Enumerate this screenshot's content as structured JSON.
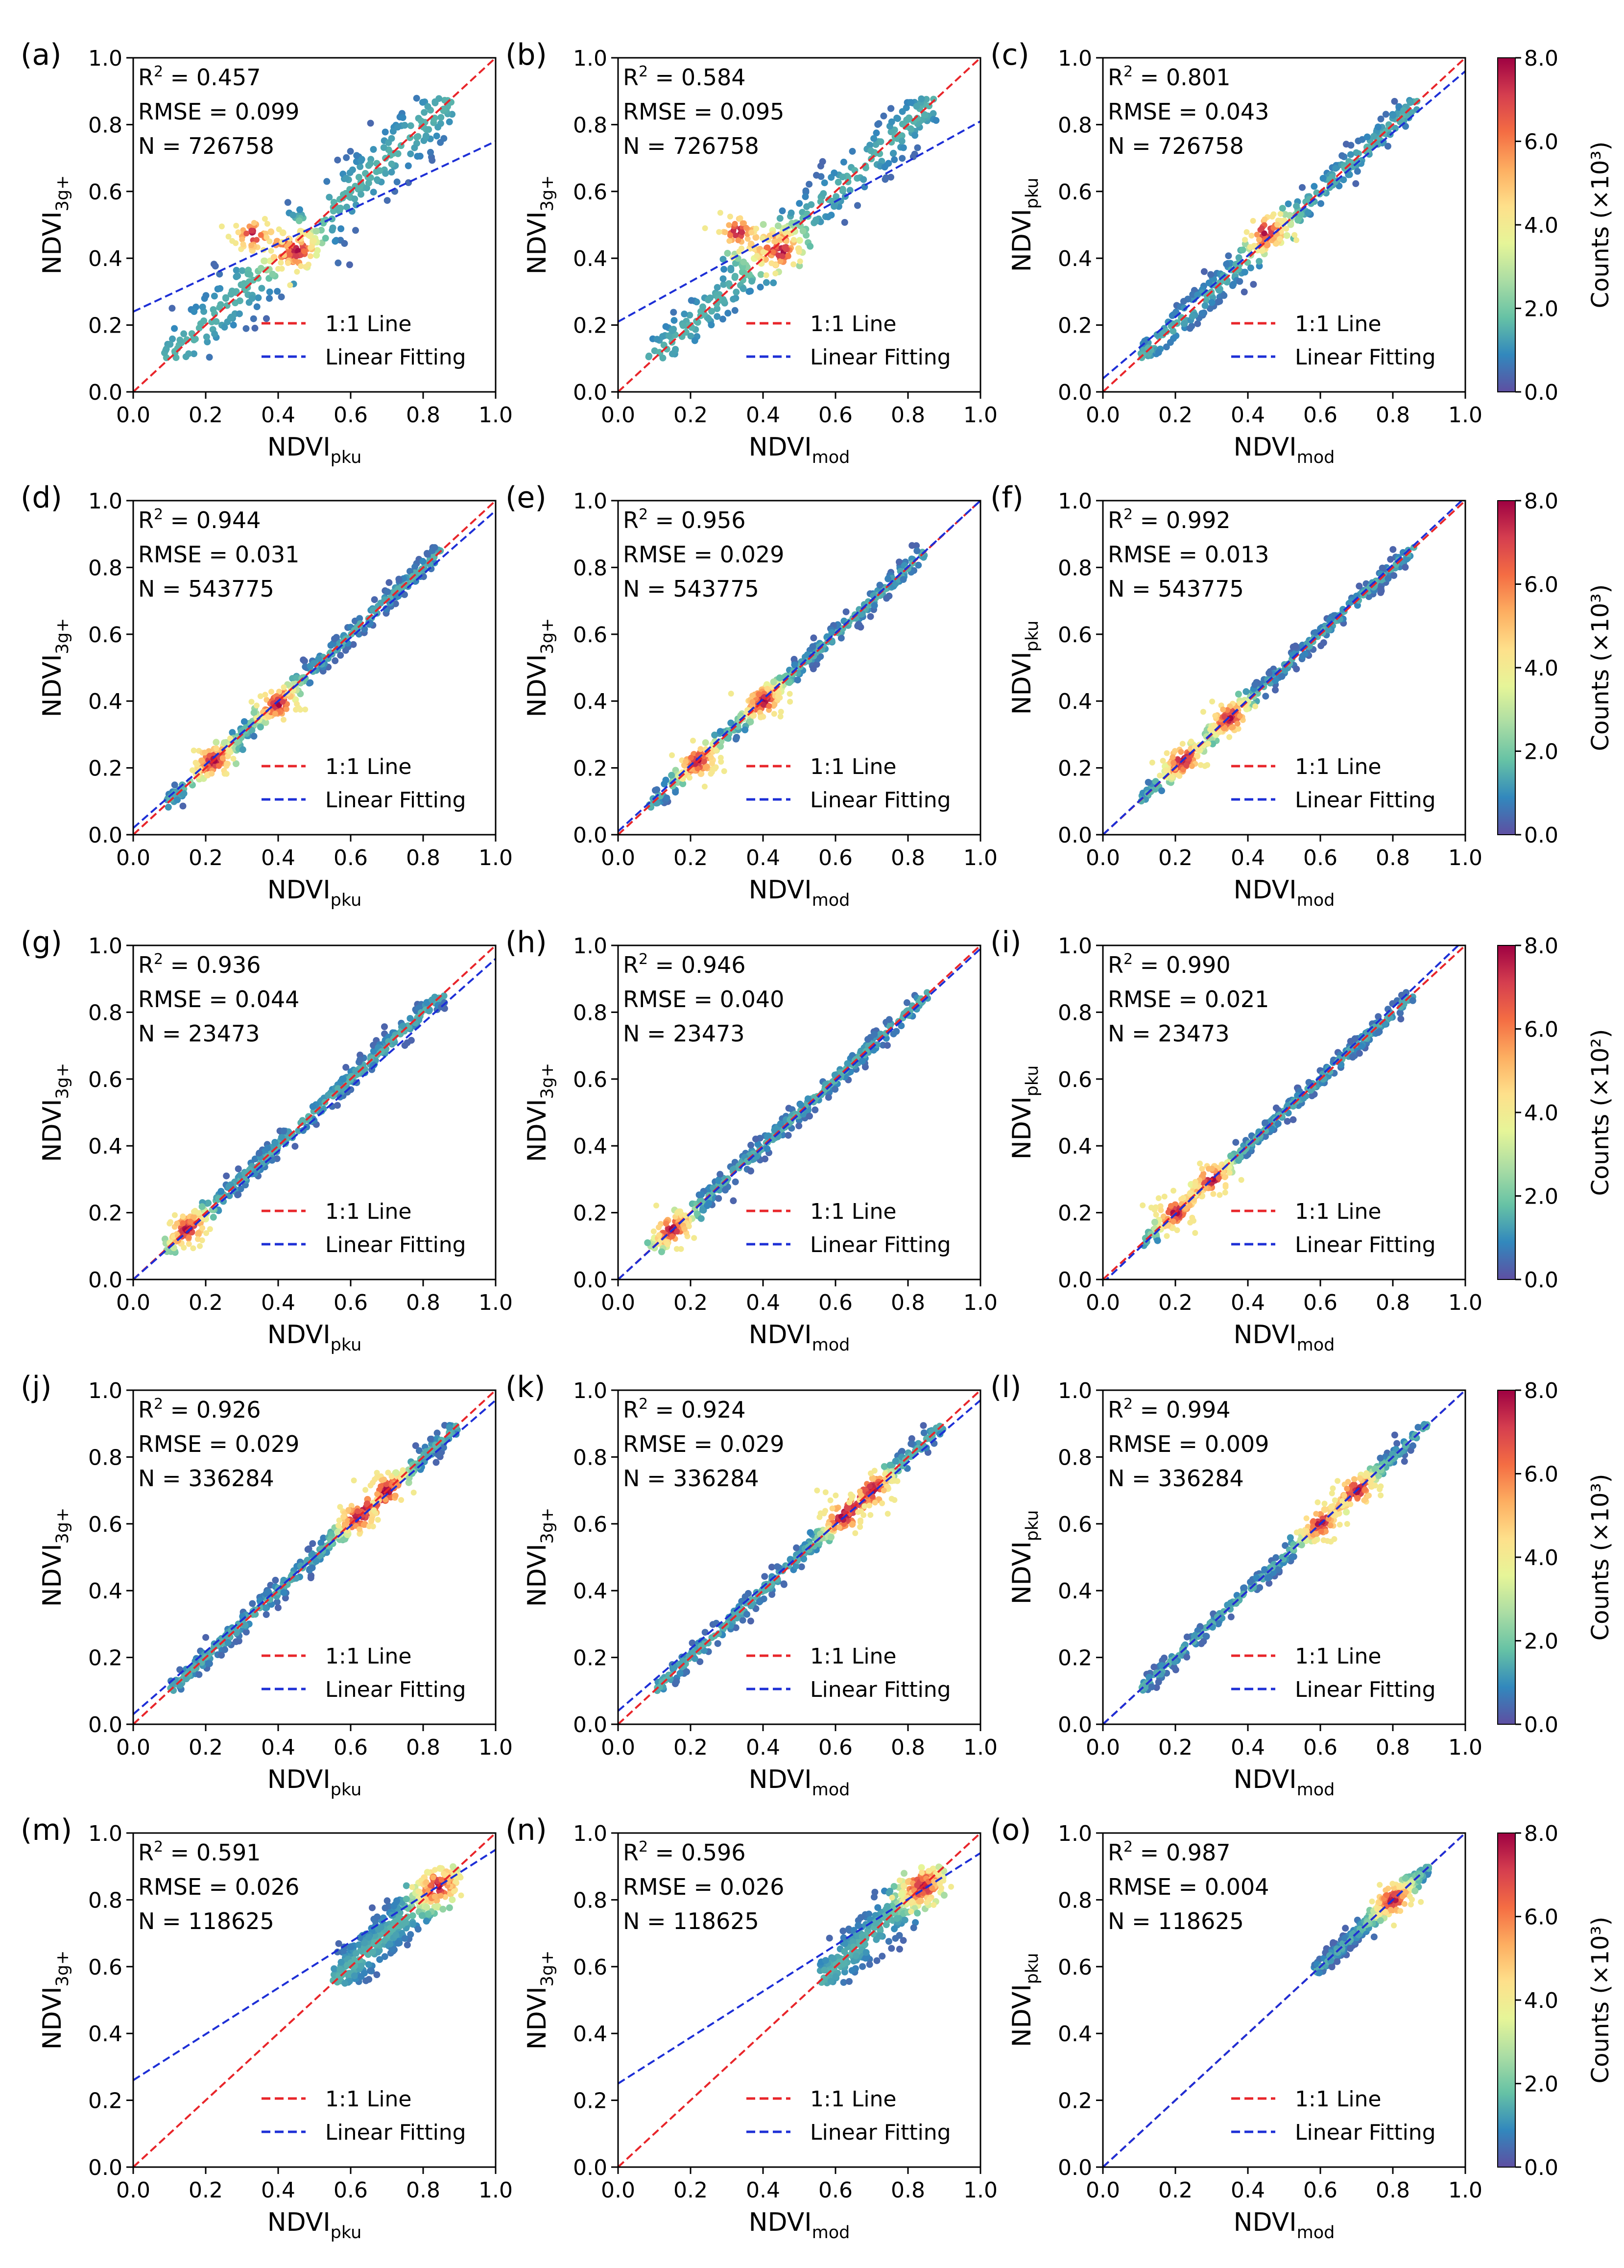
{
  "figure": {
    "axis_ticks": [
      "0.0",
      "0.2",
      "0.4",
      "0.6",
      "0.8",
      "1.0"
    ],
    "tick_values": [
      0,
      0.2,
      0.4,
      0.6,
      0.8,
      1.0
    ],
    "legend": [
      "1:1 Line",
      "Linear Fitting"
    ],
    "colors": {
      "one_to_one": "#e8252a",
      "linear_fit": "#1d2fd6",
      "colormap": [
        "#5e4fa2",
        "#3288bd",
        "#66c2a5",
        "#abdda4",
        "#e6f598",
        "#fee08b",
        "#fdae61",
        "#f46d43",
        "#d53e4f",
        "#9e0142"
      ]
    }
  },
  "rows": [
    {
      "colorbar": {
        "label": "Counts (×10³)",
        "ticks": [
          "0.0",
          "2.0",
          "4.0",
          "6.0",
          "8.0"
        ]
      }
    },
    {
      "colorbar": {
        "label": "Counts (×10³)",
        "ticks": [
          "0.0",
          "2.0",
          "4.0",
          "6.0",
          "8.0"
        ]
      }
    },
    {
      "colorbar": {
        "label": "Counts (×10²)",
        "ticks": [
          "0.0",
          "2.0",
          "4.0",
          "6.0",
          "8.0"
        ]
      }
    },
    {
      "colorbar": {
        "label": "Counts (×10³)",
        "ticks": [
          "0.0",
          "2.0",
          "4.0",
          "6.0",
          "8.0"
        ]
      }
    },
    {
      "colorbar": {
        "label": "Counts (×10³)",
        "ticks": [
          "0.0",
          "2.0",
          "4.0",
          "6.0",
          "8.0"
        ]
      }
    }
  ],
  "chart_data": [
    {
      "type": "scatter",
      "panel": "(a)",
      "xlabel": "NDVIpku",
      "xlabel_base": "NDVI",
      "xlabel_sub": "pku",
      "ylabel": "NDVI3g+",
      "ylabel_base": "NDVI",
      "ylabel_sub": "3g+",
      "xlim": [
        0,
        1
      ],
      "ylim": [
        0,
        1
      ],
      "r2": "R² = 0.457",
      "rmse": "RMSE = 0.099",
      "n": "N = 726758",
      "fit_line": {
        "intercept": 0.24,
        "slope": 0.51
      },
      "cloud": {
        "xmin": 0.08,
        "xmax": 0.88,
        "ymin": 0.1,
        "ymax": 0.88,
        "corr": 0.68,
        "hotspots": [
          [
            0.33,
            0.47
          ],
          [
            0.45,
            0.42
          ]
        ]
      }
    },
    {
      "type": "scatter",
      "panel": "(b)",
      "xlabel": "NDVImod",
      "xlabel_base": "NDVI",
      "xlabel_sub": "mod",
      "ylabel": "NDVI3g+",
      "ylabel_base": "NDVI",
      "ylabel_sub": "3g+",
      "xlim": [
        0,
        1
      ],
      "ylim": [
        0,
        1
      ],
      "r2": "R² = 0.584",
      "rmse": "RMSE = 0.095",
      "n": "N = 726758",
      "fit_line": {
        "intercept": 0.21,
        "slope": 0.6
      },
      "cloud": {
        "xmin": 0.08,
        "xmax": 0.88,
        "ymin": 0.1,
        "ymax": 0.88,
        "corr": 0.76,
        "hotspots": [
          [
            0.33,
            0.48
          ],
          [
            0.45,
            0.42
          ]
        ]
      }
    },
    {
      "type": "scatter",
      "panel": "(c)",
      "xlabel": "NDVImod",
      "xlabel_base": "NDVI",
      "xlabel_sub": "mod",
      "ylabel": "NDVIpku",
      "ylabel_base": "NDVI",
      "ylabel_sub": "pku",
      "xlim": [
        0,
        1
      ],
      "ylim": [
        0,
        1
      ],
      "r2": "R² = 0.801",
      "rmse": "RMSE = 0.043",
      "n": "N = 726758",
      "fit_line": {
        "intercept": 0.04,
        "slope": 0.92
      },
      "cloud": {
        "xmin": 0.1,
        "xmax": 0.87,
        "ymin": 0.1,
        "ymax": 0.88,
        "corr": 0.9,
        "hotspots": [
          [
            0.45,
            0.48
          ]
        ]
      }
    },
    {
      "type": "scatter",
      "panel": "(d)",
      "xlabel": "NDVIpku",
      "xlabel_base": "NDVI",
      "xlabel_sub": "pku",
      "ylabel": "NDVI3g+",
      "ylabel_base": "NDVI",
      "ylabel_sub": "3g+",
      "xlim": [
        0,
        1
      ],
      "ylim": [
        0,
        1
      ],
      "r2": "R² = 0.944",
      "rmse": "RMSE = 0.031",
      "n": "N = 543775",
      "fit_line": {
        "intercept": 0.02,
        "slope": 0.95
      },
      "cloud": {
        "xmin": 0.08,
        "xmax": 0.85,
        "ymin": 0.08,
        "ymax": 0.87,
        "corr": 0.97,
        "hotspots": [
          [
            0.22,
            0.22
          ],
          [
            0.4,
            0.39
          ]
        ]
      }
    },
    {
      "type": "scatter",
      "panel": "(e)",
      "xlabel": "NDVImod",
      "xlabel_base": "NDVI",
      "xlabel_sub": "mod",
      "ylabel": "NDVI3g+",
      "ylabel_base": "NDVI",
      "ylabel_sub": "3g+",
      "xlim": [
        0,
        1
      ],
      "ylim": [
        0,
        1
      ],
      "r2": "R² = 0.956",
      "rmse": "RMSE = 0.029",
      "n": "N = 543775",
      "fit_line": {
        "intercept": 0.01,
        "slope": 0.99
      },
      "cloud": {
        "xmin": 0.08,
        "xmax": 0.85,
        "ymin": 0.08,
        "ymax": 0.87,
        "corr": 0.97,
        "hotspots": [
          [
            0.22,
            0.22
          ],
          [
            0.4,
            0.4
          ]
        ]
      }
    },
    {
      "type": "scatter",
      "panel": "(f)",
      "xlabel": "NDVImod",
      "xlabel_base": "NDVI",
      "xlabel_sub": "mod",
      "ylabel": "NDVIpku",
      "ylabel_base": "NDVI",
      "ylabel_sub": "pku",
      "xlim": [
        0,
        1
      ],
      "ylim": [
        0,
        1
      ],
      "r2": "R² = 0.992",
      "rmse": "RMSE = 0.013",
      "n": "N = 543775",
      "fit_line": {
        "intercept": 0.0,
        "slope": 1.01
      },
      "cloud": {
        "xmin": 0.1,
        "xmax": 0.86,
        "ymin": 0.1,
        "ymax": 0.87,
        "corr": 0.995,
        "hotspots": [
          [
            0.22,
            0.22
          ],
          [
            0.35,
            0.35
          ]
        ]
      }
    },
    {
      "type": "scatter",
      "panel": "(g)",
      "xlabel": "NDVIpku",
      "xlabel_base": "NDVI",
      "xlabel_sub": "pku",
      "ylabel": "NDVI3g+",
      "ylabel_base": "NDVI",
      "ylabel_sub": "3g+",
      "xlim": [
        0,
        1
      ],
      "ylim": [
        0,
        1
      ],
      "r2": "R² = 0.936",
      "rmse": "RMSE = 0.044",
      "n": "N = 23473",
      "fit_line": {
        "intercept": 0.0,
        "slope": 0.96
      },
      "cloud": {
        "xmin": 0.08,
        "xmax": 0.86,
        "ymin": 0.08,
        "ymax": 0.86,
        "corr": 0.96,
        "hotspots": [
          [
            0.15,
            0.15
          ]
        ]
      }
    },
    {
      "type": "scatter",
      "panel": "(h)",
      "xlabel": "NDVImod",
      "xlabel_base": "NDVI",
      "xlabel_sub": "mod",
      "ylabel": "NDVI3g+",
      "ylabel_base": "NDVI",
      "ylabel_sub": "3g+",
      "xlim": [
        0,
        1
      ],
      "ylim": [
        0,
        1
      ],
      "r2": "R² = 0.946",
      "rmse": "RMSE = 0.040",
      "n": "N = 23473",
      "fit_line": {
        "intercept": 0.0,
        "slope": 0.99
      },
      "cloud": {
        "xmin": 0.08,
        "xmax": 0.86,
        "ymin": 0.08,
        "ymax": 0.86,
        "corr": 0.965,
        "hotspots": [
          [
            0.15,
            0.15
          ]
        ]
      }
    },
    {
      "type": "scatter",
      "panel": "(i)",
      "xlabel": "NDVImod",
      "xlabel_base": "NDVI",
      "xlabel_sub": "mod",
      "ylabel": "NDVIpku",
      "ylabel_base": "NDVI",
      "ylabel_sub": "pku",
      "xlim": [
        0,
        1
      ],
      "ylim": [
        0,
        1
      ],
      "r2": "R² = 0.990",
      "rmse": "RMSE = 0.021",
      "n": "N = 23473",
      "fit_line": {
        "intercept": -0.01,
        "slope": 1.03
      },
      "cloud": {
        "xmin": 0.1,
        "xmax": 0.86,
        "ymin": 0.1,
        "ymax": 0.86,
        "corr": 0.995,
        "hotspots": [
          [
            0.2,
            0.2
          ],
          [
            0.3,
            0.3
          ]
        ]
      }
    },
    {
      "type": "scatter",
      "panel": "(j)",
      "xlabel": "NDVIpku",
      "xlabel_base": "NDVI",
      "xlabel_sub": "pku",
      "ylabel": "NDVI3g+",
      "ylabel_base": "NDVI",
      "ylabel_sub": "3g+",
      "xlim": [
        0,
        1
      ],
      "ylim": [
        0,
        1
      ],
      "r2": "R² = 0.926",
      "rmse": "RMSE = 0.029",
      "n": "N = 336284",
      "fit_line": {
        "intercept": 0.03,
        "slope": 0.94
      },
      "cloud": {
        "xmin": 0.1,
        "xmax": 0.9,
        "ymin": 0.1,
        "ymax": 0.9,
        "corr": 0.96,
        "hotspots": [
          [
            0.62,
            0.62
          ],
          [
            0.7,
            0.7
          ]
        ]
      }
    },
    {
      "type": "scatter",
      "panel": "(k)",
      "xlabel": "NDVImod",
      "xlabel_base": "NDVI",
      "xlabel_sub": "mod",
      "ylabel": "NDVI3g+",
      "ylabel_base": "NDVI",
      "ylabel_sub": "3g+",
      "xlim": [
        0,
        1
      ],
      "ylim": [
        0,
        1
      ],
      "r2": "R² = 0.924",
      "rmse": "RMSE = 0.029",
      "n": "N = 336284",
      "fit_line": {
        "intercept": 0.04,
        "slope": 0.93
      },
      "cloud": {
        "xmin": 0.1,
        "xmax": 0.9,
        "ymin": 0.1,
        "ymax": 0.9,
        "corr": 0.96,
        "hotspots": [
          [
            0.62,
            0.62
          ],
          [
            0.7,
            0.7
          ]
        ]
      }
    },
    {
      "type": "scatter",
      "panel": "(l)",
      "xlabel": "NDVImod",
      "xlabel_base": "NDVI",
      "xlabel_sub": "mod",
      "ylabel": "NDVIpku",
      "ylabel_base": "NDVI",
      "ylabel_sub": "pku",
      "xlim": [
        0,
        1
      ],
      "ylim": [
        0,
        1
      ],
      "r2": "R² = 0.994",
      "rmse": "RMSE = 0.009",
      "n": "N = 336284",
      "fit_line": {
        "intercept": 0.0,
        "slope": 1.0
      },
      "cloud": {
        "xmin": 0.1,
        "xmax": 0.9,
        "ymin": 0.1,
        "ymax": 0.9,
        "corr": 0.995,
        "hotspots": [
          [
            0.6,
            0.6
          ],
          [
            0.7,
            0.7
          ]
        ]
      }
    },
    {
      "type": "scatter",
      "panel": "(m)",
      "xlabel": "NDVIpku",
      "xlabel_base": "NDVI",
      "xlabel_sub": "pku",
      "ylabel": "NDVI3g+",
      "ylabel_base": "NDVI",
      "ylabel_sub": "3g+",
      "xlim": [
        0,
        1
      ],
      "ylim": [
        0,
        1
      ],
      "r2": "R² = 0.591",
      "rmse": "RMSE = 0.026",
      "n": "N = 118625",
      "fit_line": {
        "intercept": 0.26,
        "slope": 0.69
      },
      "cloud": {
        "xmin": 0.55,
        "xmax": 0.9,
        "ymin": 0.55,
        "ymax": 0.9,
        "corr": 0.8,
        "hotspots": [
          [
            0.84,
            0.84
          ]
        ]
      }
    },
    {
      "type": "scatter",
      "panel": "(n)",
      "xlabel": "NDVImod",
      "xlabel_base": "NDVI",
      "xlabel_sub": "mod",
      "ylabel": "NDVI3g+",
      "ylabel_base": "NDVI",
      "ylabel_sub": "3g+",
      "xlim": [
        0,
        1
      ],
      "ylim": [
        0,
        1
      ],
      "r2": "R² = 0.596",
      "rmse": "RMSE = 0.026",
      "n": "N = 118625",
      "fit_line": {
        "intercept": 0.25,
        "slope": 0.69
      },
      "cloud": {
        "xmin": 0.55,
        "xmax": 0.9,
        "ymin": 0.55,
        "ymax": 0.9,
        "corr": 0.8,
        "hotspots": [
          [
            0.84,
            0.84
          ]
        ]
      }
    },
    {
      "type": "scatter",
      "panel": "(o)",
      "xlabel": "NDVImod",
      "xlabel_base": "NDVI",
      "xlabel_sub": "mod",
      "ylabel": "NDVIpku",
      "ylabel_base": "NDVI",
      "ylabel_sub": "pku",
      "xlim": [
        0,
        1
      ],
      "ylim": [
        0,
        1
      ],
      "r2": "R² = 0.987",
      "rmse": "RMSE = 0.004",
      "n": "N = 118625",
      "fit_line": {
        "intercept": 0.0,
        "slope": 1.0
      },
      "cloud": {
        "xmin": 0.58,
        "xmax": 0.9,
        "ymin": 0.58,
        "ymax": 0.9,
        "corr": 0.995,
        "hotspots": [
          [
            0.8,
            0.8
          ]
        ]
      }
    }
  ]
}
